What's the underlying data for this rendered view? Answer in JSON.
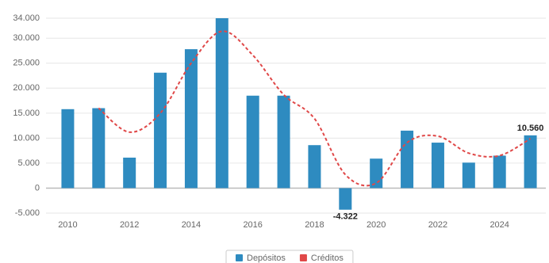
{
  "chart_data": {
    "type": "bar",
    "categories": [
      "2010",
      null,
      "2012",
      null,
      "2014",
      null,
      "2016",
      null,
      "2018",
      null,
      "2020",
      null,
      "2022",
      null,
      "2024",
      null
    ],
    "series": [
      {
        "name": "Depósitos",
        "color": "#2e8bc0",
        "type": "bar",
        "values": [
          15800,
          16000,
          6100,
          23100,
          27800,
          34000,
          18500,
          18500,
          8600,
          -4322,
          5900,
          11500,
          9100,
          5100,
          6500,
          10560
        ],
        "value_labels": [
          null,
          null,
          null,
          null,
          null,
          null,
          null,
          null,
          null,
          "-4.322",
          null,
          null,
          null,
          null,
          null,
          "10.560"
        ]
      },
      {
        "name": "Créditos",
        "color": "#e04848",
        "type": "line",
        "values": [
          null,
          16000,
          11200,
          15000,
          25000,
          31400,
          26600,
          18700,
          13900,
          2700,
          1000,
          9100,
          10400,
          7000,
          6500,
          9900
        ]
      }
    ],
    "ylim": [
      -5000,
      34000
    ],
    "yticks": [
      {
        "value": -5000,
        "label": "-5.000"
      },
      0,
      {
        "value": 5000,
        "label": "5.000"
      },
      {
        "value": 10000,
        "label": "10.000"
      },
      {
        "value": 15000,
        "label": "15.000"
      },
      {
        "value": 20000,
        "label": "20.000"
      },
      {
        "value": 25000,
        "label": "25.000"
      },
      {
        "value": 30000,
        "label": "30.000"
      },
      {
        "value": 34000,
        "label": "34.000"
      }
    ],
    "grid": true,
    "legend": "bottom"
  }
}
